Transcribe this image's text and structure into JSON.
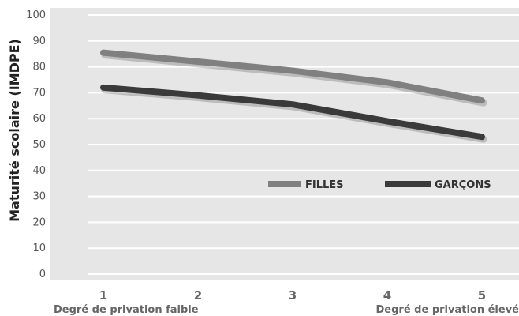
{
  "chart_data": {
    "type": "line",
    "ylabel": "Maturité scolaire (IMDPE)",
    "ylim": [
      0,
      100
    ],
    "yticks": [
      "0",
      "10",
      "20",
      "30",
      "40",
      "50",
      "60",
      "70",
      "80",
      "90",
      "100"
    ],
    "categories": [
      "1",
      "2",
      "3",
      "4",
      "5"
    ],
    "x_notes": {
      "left": "Degré de privation faible",
      "right": "Degré de privation élevé"
    },
    "series": [
      {
        "name": "FILLES",
        "color": "#808080",
        "values": [
          85.5,
          82,
          78.5,
          74,
          67
        ]
      },
      {
        "name": "GARÇONS",
        "color": "#3a3a3a",
        "values": [
          72,
          69,
          65.5,
          59,
          53
        ]
      }
    ],
    "grid": true,
    "legend_position": "center-right"
  }
}
